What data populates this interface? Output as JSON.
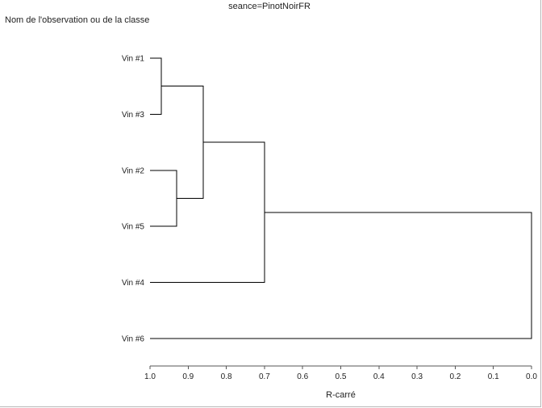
{
  "chart_data": {
    "type": "dendrogram",
    "title": "seance=PinotNoirFR",
    "leaf_axis_label": "Nom de l'observation ou de la classe",
    "xlabel": "R-carré",
    "xlim": [
      1.0,
      0.0
    ],
    "x_ticks": [
      "1.0",
      "0.9",
      "0.8",
      "0.7",
      "0.6",
      "0.5",
      "0.4",
      "0.3",
      "0.2",
      "0.1",
      "0.0"
    ],
    "leaves": [
      "Vin #1",
      "Vin #3",
      "Vin #2",
      "Vin #5",
      "Vin #4",
      "Vin #6"
    ],
    "merges": [
      {
        "left": "Vin #1",
        "right": "Vin #3",
        "r_squared": 0.97
      },
      {
        "left": "Vin #2",
        "right": "Vin #5",
        "r_squared": 0.93
      },
      {
        "left": "Vin #1 + Vin #3",
        "right": "Vin #2 + Vin #5",
        "r_squared": 0.86
      },
      {
        "left": "Vin #1 + Vin #3 + Vin #2 + Vin #5",
        "right": "Vin #4",
        "r_squared": 0.7
      },
      {
        "left": "Vin #1 + Vin #3 + Vin #2 + Vin #5 + Vin #4",
        "right": "Vin #6",
        "r_squared": 0.0
      }
    ]
  }
}
